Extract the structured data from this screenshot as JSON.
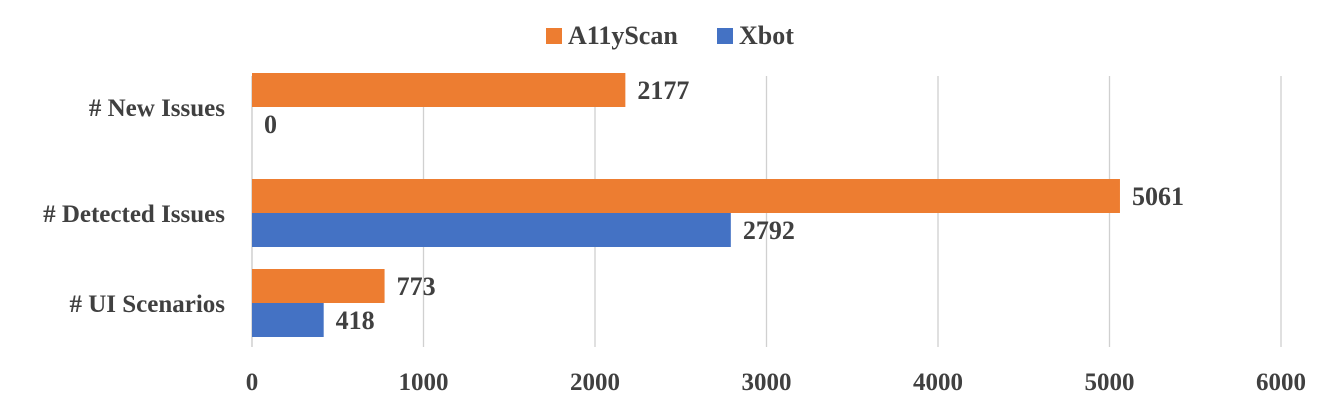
{
  "chart_data": {
    "type": "bar",
    "orientation": "horizontal",
    "categories": [
      "# New Issues",
      "# Detected Issues",
      "# UI Scenarios"
    ],
    "series": [
      {
        "name": "A11yScan",
        "color": "#ED7D31",
        "values": [
          2177,
          5061,
          773
        ]
      },
      {
        "name": "Xbot",
        "color": "#4472C4",
        "values": [
          0,
          2792,
          418
        ]
      }
    ],
    "xlim": [
      0,
      6000
    ],
    "xticks": [
      0,
      1000,
      2000,
      3000,
      4000,
      5000,
      6000
    ],
    "grid": true,
    "legend_position": "top-center",
    "data_labels": true
  }
}
